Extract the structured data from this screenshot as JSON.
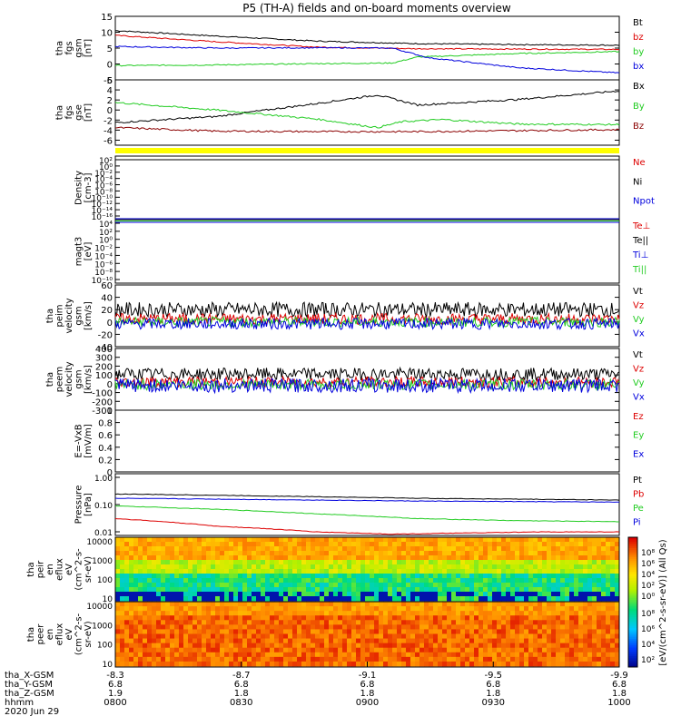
{
  "page_title": "P5 (TH-A) fields and on-board moments overview",
  "colors": {
    "black": "#000000",
    "red": "#dd0000",
    "darkred": "#8b0000",
    "green": "#22cc22",
    "blue": "#0000dd",
    "yellow": "#ffff00"
  },
  "chart_data": [
    {
      "type": "line",
      "title": "P5 (TH-A) fields and on-board moments overview",
      "ylabel": [
        "tha",
        "fgs",
        "gsm",
        "[nT]"
      ],
      "ylim": [
        -5,
        15
      ],
      "yticks": [
        -5,
        0,
        5,
        10,
        15
      ],
      "series": [
        {
          "name": "Bt",
          "color": "#000000",
          "x": [
            0,
            0.2,
            0.4,
            0.6,
            0.8,
            1.0
          ],
          "values": [
            10.5,
            8.8,
            7.2,
            6.4,
            6.1,
            5.9
          ]
        },
        {
          "name": "bz",
          "color": "#dd0000",
          "x": [
            0,
            0.2,
            0.4,
            0.6,
            0.8,
            1.0
          ],
          "values": [
            9.0,
            7.0,
            5.3,
            4.8,
            4.7,
            4.6
          ]
        },
        {
          "name": "by",
          "color": "#22cc22",
          "x": [
            0,
            0.2,
            0.4,
            0.55,
            0.6,
            0.8,
            1.0
          ],
          "values": [
            -0.5,
            -0.3,
            0.1,
            0.3,
            2.2,
            3.3,
            3.9
          ]
        },
        {
          "name": "bx",
          "color": "#0000dd",
          "x": [
            0,
            0.2,
            0.4,
            0.55,
            0.62,
            0.8,
            1.0
          ],
          "values": [
            5.5,
            5.0,
            5.1,
            5.0,
            2.0,
            -1.2,
            -2.8
          ]
        }
      ]
    },
    {
      "type": "line",
      "ylabel": [
        "tha",
        "fgs",
        "gse",
        "[nT]"
      ],
      "ylim": [
        -7,
        6
      ],
      "yticks": [
        -6,
        -4,
        -2,
        0,
        2,
        4,
        6
      ],
      "series": [
        {
          "name": "Bx",
          "color": "#000000",
          "x": [
            0,
            0.2,
            0.4,
            0.52,
            0.6,
            0.8,
            1.0
          ],
          "values": [
            -2.5,
            -1.3,
            1.3,
            3.0,
            1.0,
            2.1,
            3.8
          ]
        },
        {
          "name": "By",
          "color": "#22cc22",
          "x": [
            0,
            0.2,
            0.4,
            0.52,
            0.57,
            0.65,
            0.8,
            1.0
          ],
          "values": [
            1.5,
            0.0,
            -1.8,
            -3.5,
            -2.3,
            -1.9,
            -2.8,
            -2.9
          ]
        },
        {
          "name": "Bz",
          "color": "#8b0000",
          "x": [
            0,
            0.2,
            0.4,
            0.6,
            0.8,
            1.0
          ],
          "values": [
            -3.5,
            -4.2,
            -4.3,
            -4.3,
            -4.1,
            -3.9
          ]
        }
      ]
    },
    {
      "type": "line",
      "ylabel": [
        "Density",
        "[cm-3]"
      ],
      "log": true,
      "ytick_labels": [
        "10²",
        "10⁰",
        "10⁻²",
        "10⁻⁴",
        "10⁻⁶",
        "10⁻⁸",
        "10⁻¹⁰",
        "10⁻¹²",
        "10⁻¹⁴",
        "10⁻¹⁶"
      ],
      "series": [
        {
          "name": "Ne",
          "color": "#dd0000"
        },
        {
          "name": "Ni",
          "color": "#000000"
        },
        {
          "name": "Npot",
          "color": "#0000dd"
        }
      ]
    },
    {
      "type": "line",
      "ylabel": [
        "magt3",
        "[eV]"
      ],
      "log": true,
      "ytick_labels": [
        "10⁴",
        "10²",
        "10⁰",
        "10⁻²",
        "10⁻⁴",
        "10⁻⁶",
        "10⁻⁸",
        "10⁻¹⁰"
      ],
      "series": [
        {
          "name": "Te⊥",
          "color": "#dd0000"
        },
        {
          "name": "Te||",
          "color": "#000000"
        },
        {
          "name": "Ti⊥",
          "color": "#0000dd"
        },
        {
          "name": "Ti||",
          "color": "#22cc22"
        }
      ]
    },
    {
      "type": "line",
      "ylabel": [
        "tha",
        "peim",
        "velocity",
        "gsm",
        "[km/s]"
      ],
      "ylim": [
        -40,
        60
      ],
      "yticks": [
        -40,
        -20,
        0,
        20,
        40,
        60
      ],
      "series": [
        {
          "name": "Vt",
          "color": "#000000",
          "center": 20,
          "spread": 12
        },
        {
          "name": "Vz",
          "color": "#dd0000",
          "center": 5,
          "spread": 9
        },
        {
          "name": "Vy",
          "color": "#22cc22",
          "center": 0,
          "spread": 8
        },
        {
          "name": "Vx",
          "color": "#0000dd",
          "center": -3,
          "spread": 9
        }
      ]
    },
    {
      "type": "line",
      "ylabel": [
        "tha",
        "peem",
        "velocity",
        "gsm",
        "[km/s]"
      ],
      "ylim": [
        -300,
        400
      ],
      "yticks": [
        -300,
        -200,
        -100,
        0,
        100,
        200,
        300,
        400
      ],
      "series": [
        {
          "name": "Vt",
          "color": "#000000",
          "center": 110,
          "spread": 70
        },
        {
          "name": "Vz",
          "color": "#dd0000",
          "center": 20,
          "spread": 60
        },
        {
          "name": "Vy",
          "color": "#22cc22",
          "center": -10,
          "spread": 60
        },
        {
          "name": "Vx",
          "color": "#0000dd",
          "center": -20,
          "spread": 80
        }
      ]
    },
    {
      "type": "line",
      "ylabel": [
        "E=-VxB",
        "[mV/m]"
      ],
      "ylim": [
        0,
        1
      ],
      "yticks": [
        0,
        0.2,
        0.4,
        0.6,
        0.8,
        1.0
      ],
      "series": [
        {
          "name": "Ez",
          "color": "#dd0000"
        },
        {
          "name": "Ey",
          "color": "#22cc22"
        },
        {
          "name": "Ex",
          "color": "#0000dd"
        }
      ]
    },
    {
      "type": "line",
      "ylabel": [
        "Pressure",
        "[nPa]"
      ],
      "log": true,
      "ylim": [
        0.01,
        1.0
      ],
      "ytick_labels": [
        "1.00",
        "0.10",
        "0.01"
      ],
      "series": [
        {
          "name": "Pt",
          "color": "#000000",
          "x": [
            0,
            0.2,
            0.4,
            0.6,
            0.8,
            1.0
          ],
          "values": [
            0.22,
            0.2,
            0.18,
            0.16,
            0.15,
            0.14
          ]
        },
        {
          "name": "Pb",
          "color": "#dd0000",
          "x": [
            0,
            0.2,
            0.4,
            0.55,
            0.7,
            0.85,
            1.0
          ],
          "values": [
            0.035,
            0.02,
            0.013,
            0.011,
            0.012,
            0.013,
            0.013
          ]
        },
        {
          "name": "Pe",
          "color": "#22cc22",
          "x": [
            0,
            0.2,
            0.4,
            0.6,
            0.8,
            1.0
          ],
          "values": [
            0.09,
            0.07,
            0.05,
            0.035,
            0.03,
            0.028
          ]
        },
        {
          "name": "Pi",
          "color": "#0000dd",
          "x": [
            0,
            0.2,
            0.4,
            0.6,
            0.8,
            1.0
          ],
          "values": [
            0.16,
            0.15,
            0.14,
            0.13,
            0.125,
            0.12
          ]
        }
      ]
    },
    {
      "type": "heatmap",
      "ylabel": [
        "tha",
        "peir",
        "en",
        "eflux",
        "eV",
        "(cm^2-s-",
        "sr-eV)"
      ],
      "log": true,
      "ytick_labels": [
        "10000",
        "1000",
        "100",
        "10"
      ]
    },
    {
      "type": "heatmap",
      "ylabel": [
        "tha",
        "peer",
        "en",
        "eflux",
        "eV",
        "(cm^2-s-",
        "sr-eV)"
      ],
      "log": true,
      "ytick_labels": [
        "10000",
        "1000",
        "100",
        "10"
      ]
    }
  ],
  "colorbar": {
    "label": "[eV/(cm^2-s-sr-eV)] (All Qs)",
    "upper_ticks": [
      "10⁸",
      "10⁶",
      "10⁴",
      "10²",
      "10⁰"
    ],
    "lower_ticks": [
      "10⁸",
      "10⁶",
      "10⁴",
      "10²"
    ]
  },
  "xaxis": {
    "row_labels": [
      "tha_X-GSM",
      "tha_Y-GSM",
      "tha_Z-GSM",
      "hhmm",
      "2020 Jun 29"
    ],
    "columns": [
      {
        "x": 0.0,
        "vals": [
          "-8.3",
          "6.8",
          "1.9",
          "0800"
        ]
      },
      {
        "x": 0.25,
        "vals": [
          "-8.7",
          "6.8",
          "1.8",
          "0830"
        ]
      },
      {
        "x": 0.5,
        "vals": [
          "-9.1",
          "6.8",
          "1.8",
          "0900"
        ]
      },
      {
        "x": 0.75,
        "vals": [
          "-9.5",
          "6.8",
          "1.8",
          "0930"
        ]
      },
      {
        "x": 1.0,
        "vals": [
          "-9.9",
          "6.8",
          "1.8",
          "1000"
        ]
      }
    ]
  }
}
